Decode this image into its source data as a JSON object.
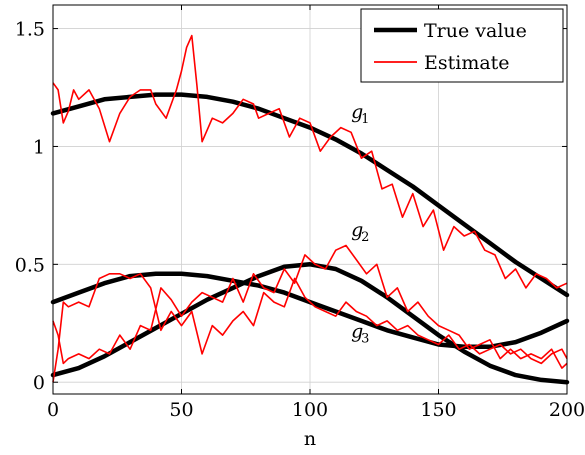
{
  "chart_data": {
    "type": "line",
    "title": "",
    "xlabel": "n",
    "ylabel": "",
    "xlim": [
      0,
      200
    ],
    "ylim": [
      -0.05,
      1.6
    ],
    "xticks": [
      0,
      50,
      100,
      150,
      200
    ],
    "yticks": [
      0,
      0.5,
      1,
      1.5
    ],
    "xtick_labels": [
      "0",
      "50",
      "100",
      "150",
      "200"
    ],
    "ytick_labels": [
      "0",
      "0.5",
      "1",
      "1.5"
    ],
    "grid": true,
    "legend_position": "top-right",
    "legend": [
      {
        "label": "True value",
        "color": "#000000",
        "style": "thick"
      },
      {
        "label": "Estimate",
        "color": "#ff0000",
        "style": "thin"
      }
    ],
    "annotations": [
      {
        "name": "g",
        "sub": "1",
        "x": 116,
        "y": 1.12
      },
      {
        "name": "g",
        "sub": "2",
        "x": 116,
        "y": 0.62
      },
      {
        "name": "g",
        "sub": "3",
        "x": 116,
        "y": 0.19
      }
    ],
    "series": [
      {
        "id": "g1",
        "true_x": [
          0,
          10,
          20,
          30,
          40,
          50,
          60,
          70,
          80,
          90,
          100,
          110,
          120,
          130,
          140,
          150,
          160,
          170,
          180,
          190,
          200
        ],
        "true_y": [
          1.14,
          1.17,
          1.2,
          1.21,
          1.22,
          1.22,
          1.21,
          1.19,
          1.16,
          1.12,
          1.08,
          1.03,
          0.97,
          0.9,
          0.83,
          0.75,
          0.67,
          0.59,
          0.51,
          0.44,
          0.37
        ],
        "est_x": [
          0,
          2,
          4,
          6,
          8,
          10,
          14,
          18,
          22,
          26,
          30,
          34,
          38,
          40,
          44,
          48,
          50,
          52,
          54,
          56,
          58,
          62,
          66,
          70,
          74,
          78,
          80,
          84,
          88,
          92,
          96,
          100,
          104,
          108,
          112,
          116,
          120,
          124,
          128,
          132,
          136,
          140,
          144,
          148,
          152,
          156,
          160,
          164,
          168,
          172,
          176,
          180,
          184,
          188,
          192,
          196,
          200
        ],
        "est_y": [
          1.27,
          1.24,
          1.1,
          1.15,
          1.24,
          1.2,
          1.24,
          1.16,
          1.02,
          1.14,
          1.21,
          1.24,
          1.24,
          1.18,
          1.12,
          1.24,
          1.32,
          1.42,
          1.47,
          1.26,
          1.02,
          1.12,
          1.1,
          1.14,
          1.2,
          1.18,
          1.12,
          1.14,
          1.16,
          1.04,
          1.12,
          1.1,
          0.98,
          1.04,
          1.08,
          1.06,
          0.95,
          0.98,
          0.82,
          0.84,
          0.7,
          0.8,
          0.66,
          0.73,
          0.56,
          0.66,
          0.62,
          0.64,
          0.56,
          0.54,
          0.44,
          0.48,
          0.4,
          0.46,
          0.44,
          0.4,
          0.42
        ]
      },
      {
        "id": "g2",
        "true_x": [
          0,
          10,
          20,
          30,
          40,
          50,
          60,
          70,
          80,
          90,
          100,
          110,
          120,
          130,
          140,
          150,
          160,
          170,
          180,
          190,
          200
        ],
        "true_y": [
          0.03,
          0.06,
          0.11,
          0.17,
          0.23,
          0.29,
          0.35,
          0.4,
          0.45,
          0.49,
          0.5,
          0.48,
          0.43,
          0.36,
          0.28,
          0.2,
          0.13,
          0.07,
          0.03,
          0.01,
          0.0
        ],
        "est_x": [
          0,
          2,
          4,
          6,
          10,
          14,
          18,
          22,
          26,
          30,
          34,
          38,
          42,
          46,
          50,
          54,
          58,
          62,
          66,
          70,
          74,
          78,
          82,
          86,
          90,
          94,
          98,
          102,
          106,
          110,
          114,
          118,
          122,
          126,
          130,
          134,
          138,
          142,
          146,
          150,
          154,
          158,
          162,
          166,
          170,
          174,
          178,
          182,
          186,
          190,
          194,
          198,
          200
        ],
        "est_y": [
          0.26,
          0.2,
          0.08,
          0.1,
          0.12,
          0.1,
          0.14,
          0.12,
          0.2,
          0.14,
          0.24,
          0.22,
          0.4,
          0.35,
          0.28,
          0.34,
          0.38,
          0.36,
          0.34,
          0.44,
          0.34,
          0.46,
          0.4,
          0.38,
          0.48,
          0.42,
          0.54,
          0.5,
          0.48,
          0.56,
          0.58,
          0.52,
          0.46,
          0.5,
          0.36,
          0.4,
          0.3,
          0.34,
          0.28,
          0.24,
          0.22,
          0.2,
          0.14,
          0.16,
          0.18,
          0.1,
          0.14,
          0.1,
          0.12,
          0.1,
          0.14,
          0.06,
          0.08
        ]
      },
      {
        "id": "g3",
        "true_x": [
          0,
          10,
          20,
          30,
          40,
          50,
          60,
          70,
          80,
          90,
          100,
          110,
          120,
          130,
          140,
          150,
          160,
          170,
          180,
          190,
          200
        ],
        "true_y": [
          0.34,
          0.38,
          0.42,
          0.45,
          0.46,
          0.46,
          0.45,
          0.43,
          0.41,
          0.38,
          0.34,
          0.3,
          0.26,
          0.22,
          0.19,
          0.16,
          0.15,
          0.15,
          0.17,
          0.21,
          0.26
        ],
        "est_x": [
          0,
          2,
          4,
          6,
          10,
          14,
          18,
          22,
          26,
          30,
          34,
          38,
          42,
          46,
          50,
          54,
          58,
          62,
          66,
          70,
          74,
          78,
          82,
          86,
          90,
          94,
          98,
          102,
          106,
          110,
          114,
          118,
          122,
          126,
          130,
          134,
          138,
          142,
          146,
          150,
          154,
          158,
          162,
          166,
          170,
          174,
          178,
          182,
          186,
          190,
          194,
          198,
          200
        ],
        "est_y": [
          0.0,
          0.14,
          0.34,
          0.32,
          0.34,
          0.32,
          0.44,
          0.46,
          0.46,
          0.44,
          0.46,
          0.4,
          0.22,
          0.3,
          0.24,
          0.3,
          0.12,
          0.24,
          0.2,
          0.26,
          0.3,
          0.24,
          0.38,
          0.34,
          0.32,
          0.44,
          0.36,
          0.32,
          0.3,
          0.28,
          0.34,
          0.3,
          0.28,
          0.24,
          0.26,
          0.22,
          0.24,
          0.2,
          0.18,
          0.16,
          0.2,
          0.14,
          0.16,
          0.12,
          0.14,
          0.16,
          0.12,
          0.14,
          0.1,
          0.08,
          0.12,
          0.14,
          0.1
        ]
      }
    ]
  }
}
